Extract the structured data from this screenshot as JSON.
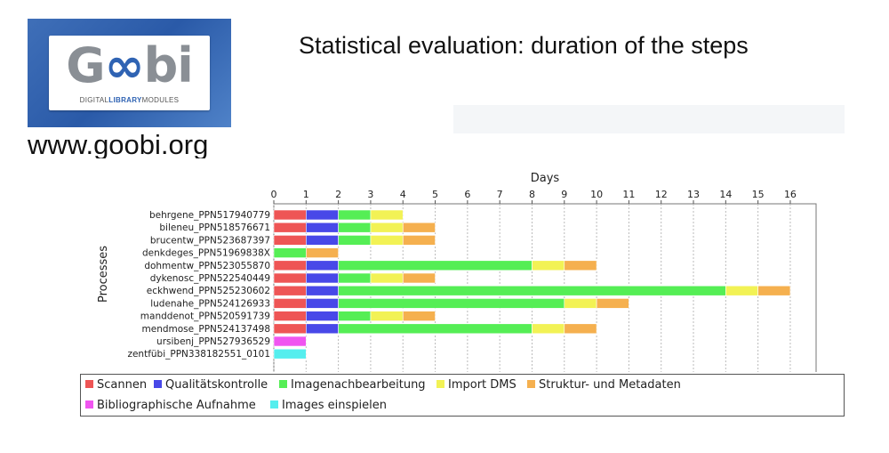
{
  "header": {
    "logo_text": "Goobi",
    "logo_sub": "DIGITALLIBRARYMODULES",
    "url": "www.goobi.org",
    "title": "Statistical evaluation: duration of the steps"
  },
  "chart_data": {
    "type": "bar",
    "orientation": "horizontal",
    "stacked": true,
    "title": "",
    "xlabel": "Days",
    "ylabel": "Processes",
    "xlim": [
      0,
      16.8
    ],
    "xticks": [
      0,
      1,
      2,
      3,
      4,
      5,
      6,
      7,
      8,
      9,
      10,
      11,
      12,
      13,
      14,
      15,
      16
    ],
    "grid": true,
    "legend_position": "bottom",
    "categories": [
      "behrgene_PPN517940779",
      "bileneu_PPN518576671",
      "brucentw_PPN523687397",
      "denkdeges_PPN51969838X",
      "dohmentw_PPN523055870",
      "dykenosc_PPN522540449",
      "eckhwend_PPN525230602",
      "ludenahe_PPN524126933",
      "manddenot_PPN520591739",
      "mendmose_PPN524137498",
      "ursibenj_PPN527936529",
      "zentfübi_PPN338182551_0101"
    ],
    "series": [
      {
        "name": "Scannen",
        "color": "#ee5555",
        "values": [
          1,
          1,
          1,
          0,
          1,
          1,
          1,
          1,
          1,
          1,
          0,
          0
        ]
      },
      {
        "name": "Qualitätskontrolle",
        "color": "#4848e8",
        "values": [
          1,
          1,
          1,
          0,
          1,
          1,
          1,
          1,
          1,
          1,
          0,
          0
        ]
      },
      {
        "name": "Imagenachbearbeitung",
        "color": "#55ee55",
        "values": [
          1,
          1,
          1,
          1,
          6,
          1,
          12,
          7,
          1,
          6,
          0,
          0
        ]
      },
      {
        "name": "Import DMS",
        "color": "#f2f255",
        "values": [
          1,
          1,
          1,
          0,
          1,
          1,
          1,
          1,
          1,
          1,
          0,
          0
        ]
      },
      {
        "name": "Struktur- und Metadaten",
        "color": "#f5b04f",
        "values": [
          0,
          1,
          1,
          1,
          1,
          1,
          1,
          1,
          1,
          1,
          0,
          0
        ]
      },
      {
        "name": "Bibliographische Aufnahme",
        "color": "#f055f0",
        "values": [
          0,
          0,
          0,
          0,
          0,
          0,
          0,
          0,
          0,
          0,
          1,
          0
        ]
      },
      {
        "name": "Images einspielen",
        "color": "#55eeee",
        "values": [
          0,
          0,
          0,
          0,
          0,
          0,
          0,
          0,
          0,
          0,
          0,
          1
        ]
      }
    ]
  }
}
